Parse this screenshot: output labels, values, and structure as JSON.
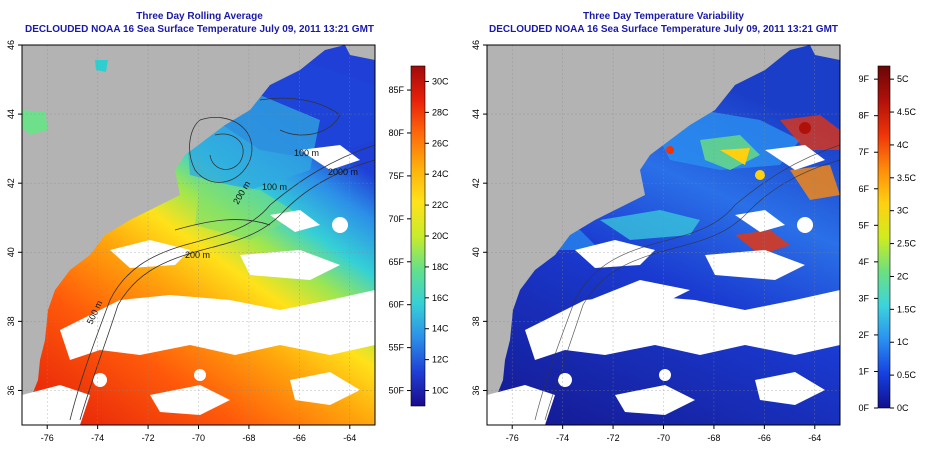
{
  "panels": [
    {
      "title": "Three Day Rolling Average",
      "subtitle": "DECLOUDED NOAA 16 Sea Surface Temperature July 09, 2011 13:21 GMT",
      "x_ticks": [
        "-76",
        "-74",
        "-72",
        "-70",
        "-68",
        "-66",
        "-64"
      ],
      "y_ticks": [
        "46",
        "44",
        "42",
        "40",
        "38",
        "36"
      ],
      "contour_labels": [
        "100 m",
        "100 m",
        "200 m",
        "2000 m",
        "200 m",
        "500 m"
      ],
      "colorbar": {
        "fahrenheit": [
          "85F",
          "80F",
          "75F",
          "70F",
          "65F",
          "60F",
          "55F",
          "50F"
        ],
        "celsius": [
          "30C",
          "28C",
          "26C",
          "24C",
          "22C",
          "20C",
          "18C",
          "16C",
          "14C",
          "12C",
          "10C"
        ]
      }
    },
    {
      "title": "Three Day Temperature Variability",
      "subtitle": "DECLOUDED NOAA 16 Sea Surface Temperature July 09, 2011 13:21 GMT",
      "x_ticks": [
        "-76",
        "-74",
        "-72",
        "-70",
        "-68",
        "-66",
        "-64"
      ],
      "y_ticks": [
        "46",
        "44",
        "42",
        "40",
        "38",
        "36"
      ],
      "colorbar": {
        "fahrenheit": [
          "9F",
          "8F",
          "7F",
          "6F",
          "5F",
          "4F",
          "3F",
          "2F",
          "1F",
          "0F"
        ],
        "celsius": [
          "5C",
          "4.5C",
          "4C",
          "3.5C",
          "3C",
          "2.5C",
          "2C",
          "1.5C",
          "1C",
          "0.5C",
          "0C"
        ]
      }
    }
  ],
  "colors": {
    "land": "#b3b3b3",
    "cloud": "#ffffff",
    "title": "#1a1aa8",
    "contour": "#333333",
    "sst_scale": [
      "#1a0a8c",
      "#1f3fd6",
      "#2c8fe8",
      "#35d0d6",
      "#63e08c",
      "#c8ec2a",
      "#ffe21a",
      "#ffb00c",
      "#ff6a0a",
      "#e8200a",
      "#a00a0a"
    ],
    "var_scale": [
      "#10108c",
      "#1540e0",
      "#2a90f0",
      "#3cd4dc",
      "#6ce080",
      "#d0ec20",
      "#ffd010",
      "#ff8a0a",
      "#ee3408",
      "#b0100a",
      "#6a0606"
    ]
  }
}
